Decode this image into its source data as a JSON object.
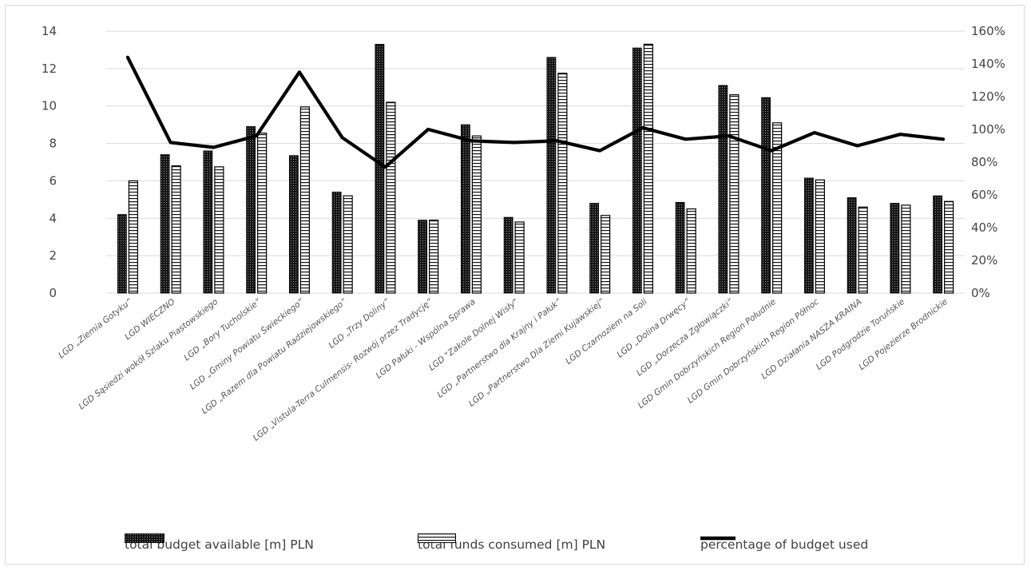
{
  "chart_data": {
    "type": "bar",
    "title": "",
    "categories": [
      "LGD „Ziemia Gotyku”",
      "LGD WIECZNO",
      "LGD Sąsiedzi wokół Szlaku Piastowskiego",
      "LGD „Bory Tucholskie”",
      "LGD „Gminy Powiatu Świeckiego”",
      "LGD „Razem dla Powiatu Radziejowskiego”",
      "LGD „Trzy Doliny”",
      "LGD „Vistula-Terra Culmensis- Rozwój przez Tradycję”",
      "LGD Pałuki - Wspólna Sprawa",
      "LGD \"Zakole Dolnej Wisły\"",
      "LGD „Partnerstwo dla Krajny i Pałuk”",
      "LGD „Partnerstwo Dla Ziemi Kujawskiej”",
      "LGD Czarnoziem na Soli",
      "LGD „Dolina Drwęcy”",
      "LGD „Dorzecza Zgłowiączki”",
      "LGD Gmin Dobrzyńskich Region Południe",
      "LGD Gmin Dobrzyńskich Region Północ",
      "LGD Działania NASZA KRAINA",
      "LGD Podgrodzie Toruńskie",
      "LGD Pojezierze Brodnickie"
    ],
    "series": [
      {
        "name": "total budget available [m] PLN",
        "axis": "left",
        "style": "dotted-bar",
        "values": [
          4.2,
          7.4,
          7.6,
          8.9,
          7.35,
          5.4,
          13.3,
          3.9,
          9.0,
          4.05,
          12.6,
          4.8,
          13.1,
          4.85,
          11.1,
          10.45,
          6.15,
          5.1,
          4.8,
          5.2
        ]
      },
      {
        "name": "total funds consumed [m] PLN",
        "axis": "left",
        "style": "striped-bar",
        "values": [
          6.0,
          6.8,
          6.75,
          8.55,
          9.95,
          5.2,
          10.2,
          3.9,
          8.4,
          3.8,
          11.75,
          4.15,
          13.3,
          4.5,
          10.6,
          9.1,
          6.05,
          4.6,
          4.7,
          4.9
        ]
      },
      {
        "name": "percentage of budget used",
        "axis": "right",
        "style": "line",
        "values": [
          144,
          92,
          89,
          96,
          135,
          95,
          77,
          100,
          93,
          92,
          93,
          87,
          101,
          94,
          96,
          87,
          98,
          90,
          97,
          94
        ]
      }
    ],
    "y_left": {
      "min": 0,
      "max": 14,
      "step": 2,
      "ticks": [
        "0",
        "2",
        "4",
        "6",
        "8",
        "10",
        "12",
        "14"
      ]
    },
    "y_right": {
      "min": 0,
      "max": 160,
      "step": 20,
      "ticks": [
        "0%",
        "20%",
        "40%",
        "60%",
        "80%",
        "100%",
        "120%",
        "140%",
        "160%"
      ]
    },
    "grid": true,
    "legend_position": "bottom"
  },
  "colors": {
    "grid": "#d9d9d9",
    "bar_dark": "#1a1a1a",
    "bar_light": "#ffffff",
    "line": "#000000",
    "text": "#404040"
  }
}
